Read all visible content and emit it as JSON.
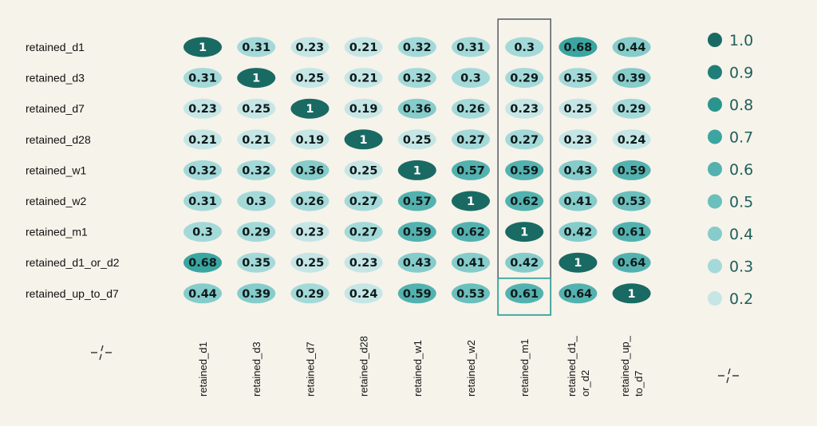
{
  "chart_data": {
    "type": "heatmap",
    "rows": [
      "retained_d1",
      "retained_d3",
      "retained_d7",
      "retained_d28",
      "retained_w1",
      "retained_w2",
      "retained_m1",
      "retained_d1_or_d2",
      "retained_up_to_d7"
    ],
    "columns": [
      [
        "retained_d1"
      ],
      [
        "retained_d3"
      ],
      [
        "retained_d7"
      ],
      [
        "retained_d28"
      ],
      [
        "retained_w1"
      ],
      [
        "retained_w2"
      ],
      [
        "retained_m1"
      ],
      [
        "retained_d1_",
        "or_d2"
      ],
      [
        "retained_up_",
        "to_d7"
      ]
    ],
    "values": [
      [
        1,
        0.31,
        0.23,
        0.21,
        0.32,
        0.31,
        0.3,
        0.68,
        0.44
      ],
      [
        0.31,
        1,
        0.25,
        0.21,
        0.32,
        0.3,
        0.29,
        0.35,
        0.39
      ],
      [
        0.23,
        0.25,
        1,
        0.19,
        0.36,
        0.26,
        0.23,
        0.25,
        0.29
      ],
      [
        0.21,
        0.21,
        0.19,
        1,
        0.25,
        0.27,
        0.27,
        0.23,
        0.24
      ],
      [
        0.32,
        0.32,
        0.36,
        0.25,
        1,
        0.57,
        0.59,
        0.43,
        0.59
      ],
      [
        0.31,
        0.3,
        0.26,
        0.27,
        0.57,
        1,
        0.62,
        0.41,
        0.53
      ],
      [
        0.3,
        0.29,
        0.23,
        0.27,
        0.59,
        0.62,
        1,
        0.42,
        0.61
      ],
      [
        0.68,
        0.35,
        0.25,
        0.23,
        0.43,
        0.41,
        0.42,
        1,
        0.64
      ],
      [
        0.44,
        0.39,
        0.29,
        0.24,
        0.59,
        0.53,
        0.61,
        0.64,
        1
      ]
    ],
    "highlighted_column": "retained_m1",
    "highlighted_cell": [
      "retained_up_to_d7",
      "retained_m1"
    ],
    "legend": {
      "position": "right",
      "labels": [
        "1.0",
        "0.9",
        "0.8",
        "0.7",
        "0.6",
        "0.5",
        "0.4",
        "0.3",
        "0.2"
      ],
      "values": [
        1.0,
        0.9,
        0.8,
        0.7,
        0.6,
        0.5,
        0.4,
        0.3,
        0.2
      ]
    },
    "colors": {
      "background": "#f6f3ea",
      "scale": [
        "#c6e6e6",
        "#a4d9d9",
        "#85cccb",
        "#6bbfbd",
        "#53b2af",
        "#3ba5a1",
        "#2a958f",
        "#1f7f78",
        "#1a6a64"
      ],
      "legend_text": "#1f5f5b",
      "frame": "#5e6470",
      "frame_highlight": "#3aa39e"
    }
  }
}
